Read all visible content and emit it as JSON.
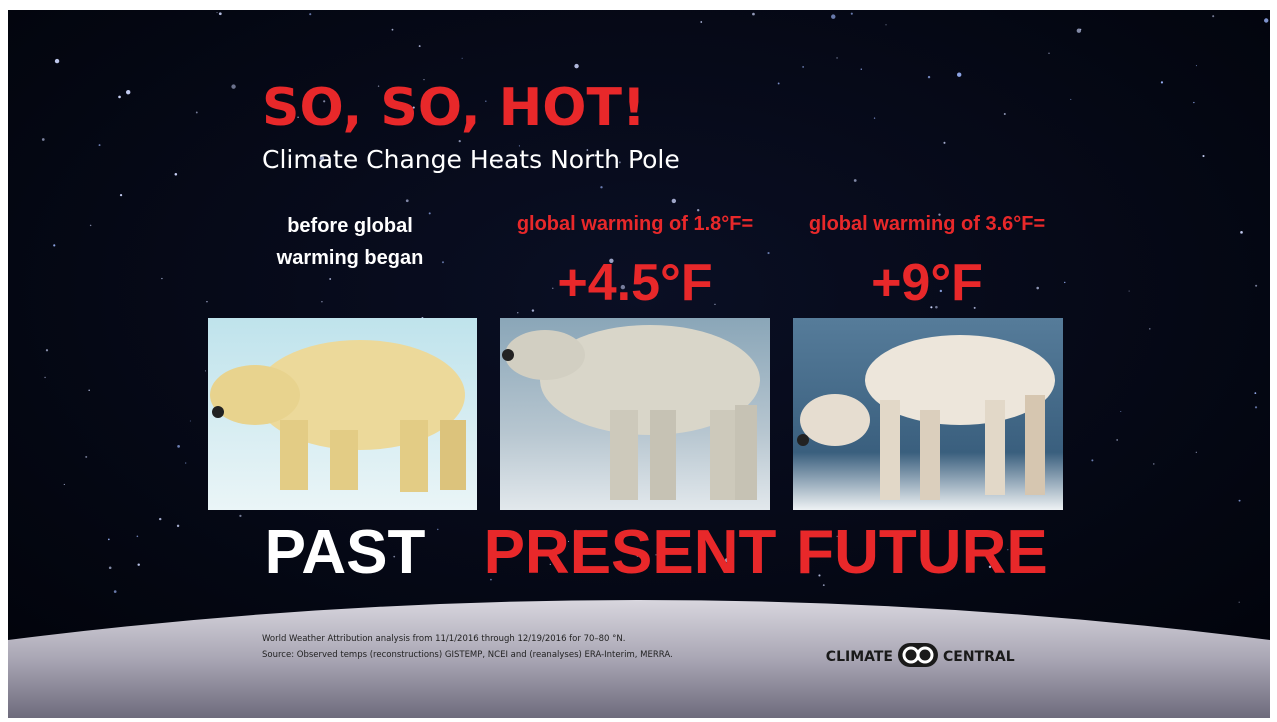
{
  "header": {
    "title": "SO, SO, HOT!",
    "subtitle": "Climate Change Heats North Pole"
  },
  "panels": [
    {
      "note_lines": [
        "before global",
        "warming began"
      ],
      "label": "PAST"
    },
    {
      "note_lines": [
        "global warming of 1.8°F="
      ],
      "change": "+4.5°F",
      "label": "PRESENT"
    },
    {
      "note_lines": [
        "global warming of 3.6°F="
      ],
      "change": "+9°F",
      "label": "FUTURE"
    }
  ],
  "footer": {
    "source_lines": [
      "World Weather Attribution analysis from 11/1/2016 through 12/19/2016 for 70–80 °N.",
      "Source: Observed temps (reconstructions) GISTEMP, NCEI and (reanalyses) ERA-Interim, MERRA."
    ],
    "logo": [
      "CLIMATE",
      "CENTRAL"
    ]
  }
}
